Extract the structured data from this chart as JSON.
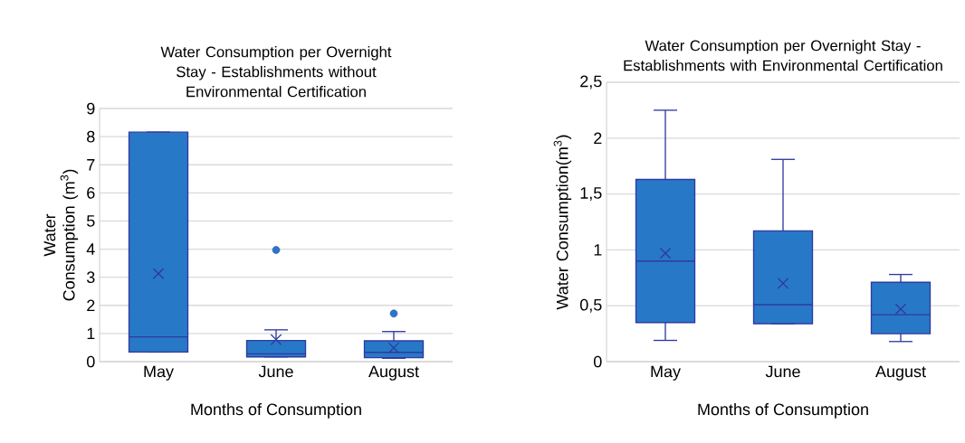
{
  "chart_data": [
    {
      "type": "box",
      "title": "Water Consumption per Overnight Stay - Establishments without Environmental Certification",
      "xlabel": "Months of Consumption",
      "ylabel": "Water Consumption (m$^{3}$)",
      "categories": [
        "May",
        "June",
        "August"
      ],
      "color": "#2878c8",
      "ylim": [
        0,
        9
      ],
      "yticks": [
        0,
        1,
        2,
        3,
        4,
        5,
        6,
        7,
        8,
        9
      ],
      "grid": "y",
      "boxes": [
        {
          "low": 0.34,
          "q1": 0.34,
          "median": 0.88,
          "q3": 8.16,
          "high": 8.16,
          "mean": 3.13
        },
        {
          "low": 0.17,
          "q1": 0.17,
          "median": 0.28,
          "q3": 0.75,
          "high": 1.13,
          "mean": 0.78,
          "outliers": [
            3.97
          ]
        },
        {
          "low": 0.12,
          "q1": 0.14,
          "median": 0.33,
          "q3": 0.74,
          "high": 1.07,
          "mean": 0.49,
          "outliers": [
            1.71
          ]
        }
      ]
    },
    {
      "type": "box",
      "title": "Water Consumption per Overnight Stay - Establishments with Environmental Certification",
      "xlabel": "Months of Consumption",
      "ylabel": "Water Consumption(m$^{3}$)",
      "categories": [
        "May",
        "June",
        "August"
      ],
      "color": "#2878c8",
      "ylim": [
        0,
        2.5
      ],
      "yticks": [
        0,
        {
          "value": 0.5,
          "label": "0,5"
        },
        1,
        {
          "value": 1.5,
          "label": "1,5"
        },
        2,
        {
          "value": 2.5,
          "label": "2,5"
        }
      ],
      "grid": "y",
      "boxes": [
        {
          "low": 0.19,
          "q1": 0.35,
          "median": 0.9,
          "q3": 1.63,
          "high": 2.25,
          "mean": 0.97
        },
        {
          "low": 0.34,
          "q1": 0.34,
          "median": 0.51,
          "q3": 1.17,
          "high": 1.81,
          "mean": 0.7
        },
        {
          "low": 0.18,
          "q1": 0.25,
          "median": 0.42,
          "q3": 0.71,
          "high": 0.78,
          "mean": 0.47
        }
      ]
    }
  ]
}
